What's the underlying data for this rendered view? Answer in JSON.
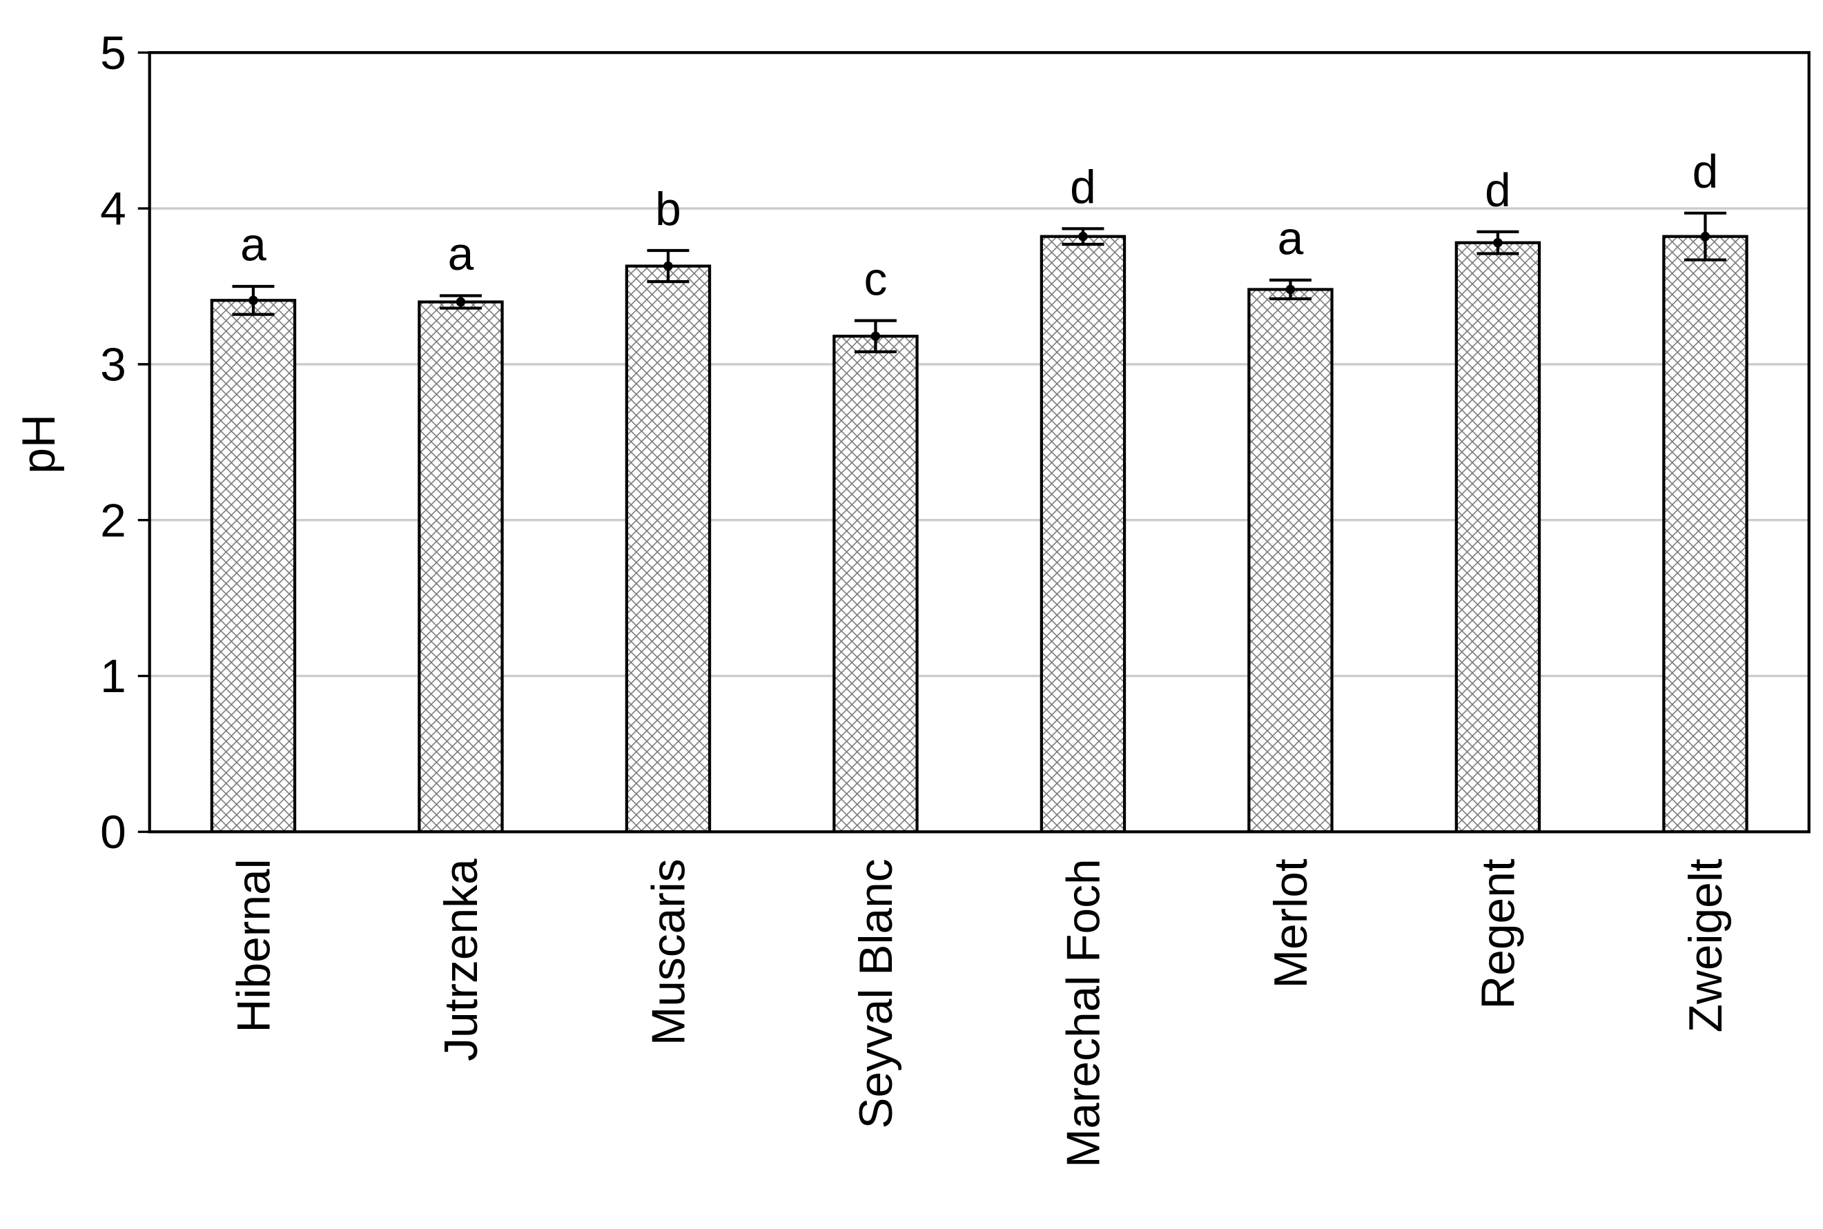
{
  "chart_data": {
    "type": "bar",
    "y_label": "pH",
    "categories": [
      "Hibernal",
      "Jutrzenka",
      "Muscaris",
      "Seyval Blanc",
      "Marechal Foch",
      "Merlot",
      "Regent",
      "Zweigelt"
    ],
    "values": [
      3.41,
      3.4,
      3.63,
      3.18,
      3.82,
      3.48,
      3.78,
      3.82
    ],
    "errors": [
      0.09,
      0.04,
      0.1,
      0.1,
      0.05,
      0.06,
      0.07,
      0.15
    ],
    "annotations": [
      "a",
      "a",
      "b",
      "c",
      "d",
      "a",
      "d",
      "d"
    ],
    "color": "#ffffff",
    "ylim": [
      0,
      5
    ],
    "yticks": [
      0,
      1,
      2,
      3,
      4,
      5
    ],
    "grid": true
  }
}
